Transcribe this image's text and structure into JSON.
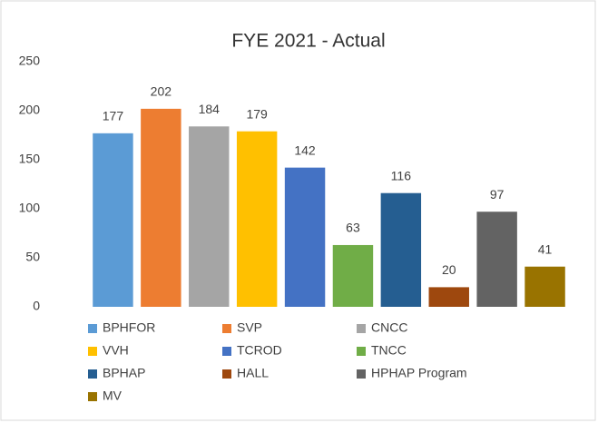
{
  "chart_data": {
    "type": "bar",
    "title": "FYE 2021 - Actual",
    "series": [
      {
        "name": "BPHFOR",
        "color": "#5b9bd5",
        "values": [
          177
        ]
      },
      {
        "name": "SVP",
        "color": "#ed7d31",
        "values": [
          202
        ]
      },
      {
        "name": "CNCC",
        "color": "#a5a5a5",
        "values": [
          184
        ]
      },
      {
        "name": "VVH",
        "color": "#ffc000",
        "values": [
          179
        ]
      },
      {
        "name": "TCROD",
        "color": "#4472c4",
        "values": [
          142
        ]
      },
      {
        "name": "TNCC",
        "color": "#70ad47",
        "values": [
          63
        ]
      },
      {
        "name": "BPHAP",
        "color": "#255e91",
        "values": [
          116
        ]
      },
      {
        "name": "HALL",
        "color": "#9e480e",
        "values": [
          20
        ]
      },
      {
        "name": "HPHAP Program",
        "color": "#636363",
        "values": [
          97
        ]
      },
      {
        "name": "MV",
        "color": "#997300",
        "values": [
          41
        ]
      }
    ],
    "ylim": [
      0,
      250
    ],
    "yticks": [
      0,
      50,
      100,
      150,
      200,
      250
    ],
    "grid": false,
    "legend": "bottom"
  }
}
